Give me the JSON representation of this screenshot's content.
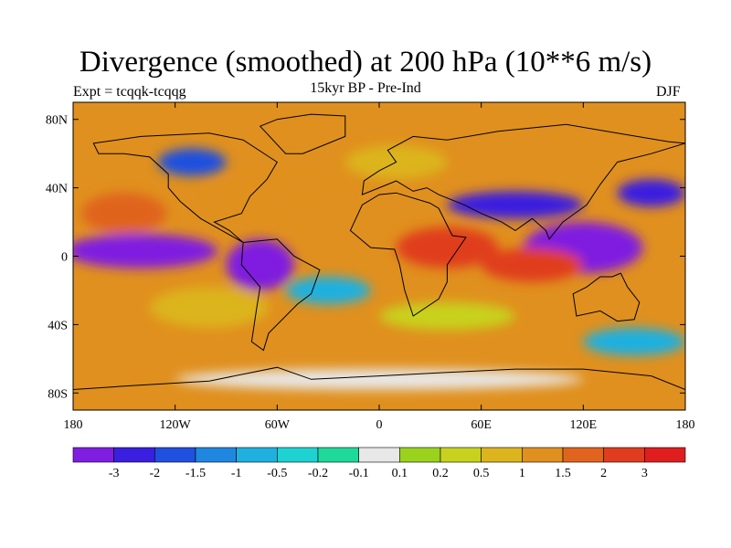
{
  "title": "Divergence (smoothed) at 200 hPa (10**6 m/s)",
  "left_string": "Expt = tcqqk-tcqqg",
  "center_string": "15kyr BP - Pre-Ind",
  "right_string": "DJF",
  "lat_ticks": [
    {
      "value": 80,
      "label": "80N"
    },
    {
      "value": 40,
      "label": "40N"
    },
    {
      "value": 0,
      "label": "0"
    },
    {
      "value": -40,
      "label": "40S"
    },
    {
      "value": -80,
      "label": "80S"
    }
  ],
  "lon_ticks": [
    {
      "value": -180,
      "label": "180"
    },
    {
      "value": -120,
      "label": "120W"
    },
    {
      "value": -60,
      "label": "60W"
    },
    {
      "value": 0,
      "label": "0"
    },
    {
      "value": 60,
      "label": "60E"
    },
    {
      "value": 120,
      "label": "120E"
    },
    {
      "value": 180,
      "label": "180"
    }
  ],
  "colorbar": {
    "colors": [
      "#7f1ee0",
      "#3a1fe0",
      "#1f50e0",
      "#1f87e0",
      "#1fb0e0",
      "#1ed2d2",
      "#1ed99a",
      "#e8e8e8",
      "#9ad21e",
      "#c8d21e",
      "#dcb41e",
      "#e0901e",
      "#e0641e",
      "#e03c1e",
      "#e01e1e"
    ],
    "labels": [
      "-3",
      "-2",
      "-1.5",
      "-1",
      "-0.5",
      "-0.2",
      "-0.1",
      "0.1",
      "0.2",
      "0.5",
      "1",
      "1.5",
      "2",
      "3"
    ]
  },
  "field_regions": [
    {
      "lon": -140,
      "lat": 3,
      "rx": 45,
      "ry": 10,
      "level": 0
    },
    {
      "lon": -70,
      "lat": -5,
      "rx": 20,
      "ry": 15,
      "level": 0
    },
    {
      "lon": 120,
      "lat": 5,
      "rx": 35,
      "ry": 15,
      "level": 0
    },
    {
      "lon": 80,
      "lat": 30,
      "rx": 40,
      "ry": 8,
      "level": 1
    },
    {
      "lon": 160,
      "lat": 37,
      "rx": 20,
      "ry": 8,
      "level": 1
    },
    {
      "lon": -110,
      "lat": 55,
      "rx": 20,
      "ry": 8,
      "level": 2
    },
    {
      "lon": 40,
      "lat": 5,
      "rx": 30,
      "ry": 12,
      "level": 13
    },
    {
      "lon": 90,
      "lat": -5,
      "rx": 30,
      "ry": 10,
      "level": 13
    },
    {
      "lon": -150,
      "lat": 25,
      "rx": 25,
      "ry": 12,
      "level": 12
    },
    {
      "lon": -60,
      "lat": 35,
      "rx": 40,
      "ry": 10,
      "level": 11
    },
    {
      "lon": 10,
      "lat": 55,
      "rx": 30,
      "ry": 10,
      "level": 10
    },
    {
      "lon": -100,
      "lat": -30,
      "rx": 35,
      "ry": 12,
      "level": 10
    },
    {
      "lon": 40,
      "lat": -35,
      "rx": 40,
      "ry": 8,
      "level": 9
    },
    {
      "lon": -30,
      "lat": -20,
      "rx": 25,
      "ry": 8,
      "level": 4
    },
    {
      "lon": 0,
      "lat": -72,
      "rx": 120,
      "ry": 6,
      "level": 7
    },
    {
      "lon": 150,
      "lat": -50,
      "rx": 30,
      "ry": 8,
      "level": 4
    }
  ]
}
